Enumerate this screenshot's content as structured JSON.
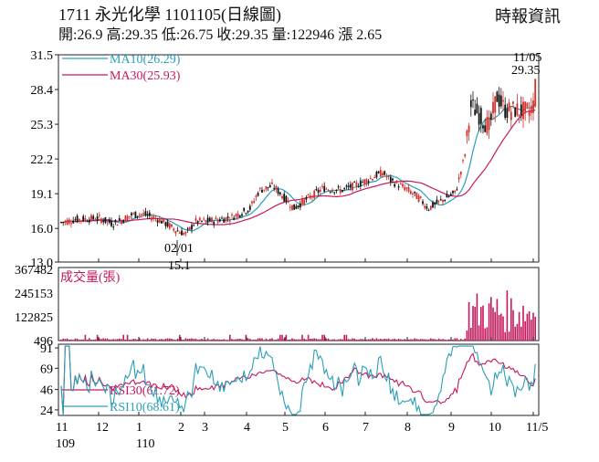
{
  "header": {
    "title": "1711  永光化學 1101105(日線圖)",
    "quote": "開:26.9 高:29.35 低:26.75 收:29.35 量:122946 漲 2.65",
    "source": "時報資訊"
  },
  "chart_data": [
    {
      "type": "candlestick",
      "name": "price",
      "ylim": [
        13.0,
        31.5
      ],
      "yticks": [
        "31.5",
        "28.4",
        "25.3",
        "22.2",
        "19.1",
        "16.0",
        "13.0"
      ],
      "legend": [
        {
          "label": "MA10(26.29)",
          "color": "#2a9fb8"
        },
        {
          "label": "MA30(25.93)",
          "color": "#c8175d"
        }
      ],
      "annotations": [
        {
          "label": "11/05",
          "value": "29.35",
          "position": "last-high"
        },
        {
          "label": "02/01",
          "value": "15.1",
          "position": "period-low"
        }
      ],
      "colors": {
        "up": "#d6302b",
        "down": "#111111"
      }
    },
    {
      "type": "bar",
      "name": "volume",
      "title": "成交量(張)",
      "yticks": [
        "367482",
        "245153",
        "122825",
        "496"
      ],
      "ylim": [
        496,
        367482
      ],
      "color": "#c8175d"
    },
    {
      "type": "line",
      "name": "rsi",
      "yticks": [
        "91",
        "69",
        "46",
        "24"
      ],
      "ylim": [
        18,
        95
      ],
      "series": [
        {
          "label": "RSI30(61.72)",
          "color": "#c8175d"
        },
        {
          "label": "RSI10(68.61)",
          "color": "#2a9fb8"
        }
      ]
    }
  ],
  "xaxis": {
    "months": [
      {
        "label": "11",
        "sub": "109"
      },
      {
        "label": "12",
        "sub": ""
      },
      {
        "label": "1",
        "sub": "110"
      },
      {
        "label": "2",
        "sub": ""
      },
      {
        "label": "3",
        "sub": ""
      },
      {
        "label": "4",
        "sub": ""
      },
      {
        "label": "5",
        "sub": ""
      },
      {
        "label": "6",
        "sub": ""
      },
      {
        "label": "7",
        "sub": ""
      },
      {
        "label": "8",
        "sub": ""
      },
      {
        "label": "9",
        "sub": ""
      },
      {
        "label": "10",
        "sub": ""
      },
      {
        "label": "11/5",
        "sub": ""
      }
    ]
  }
}
